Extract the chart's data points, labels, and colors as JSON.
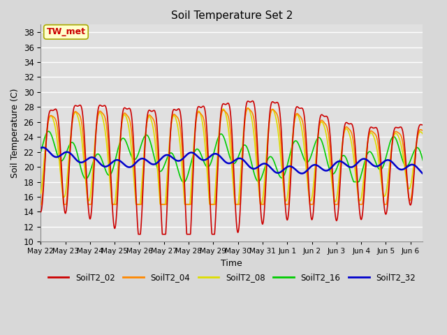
{
  "title": "Soil Temperature Set 2",
  "xlabel": "Time",
  "ylabel": "Soil Temperature (C)",
  "ylim": [
    10,
    39
  ],
  "yticks": [
    10,
    12,
    14,
    16,
    18,
    20,
    22,
    24,
    26,
    28,
    30,
    32,
    34,
    36,
    38
  ],
  "background_color": "#d8d8d8",
  "plot_bg_color": "#e0e0e0",
  "grid_color": "#ffffff",
  "annotation_text": "TW_met",
  "annotation_color": "#cc0000",
  "annotation_bg": "#ffffcc",
  "annotation_border": "#aaaa00",
  "series": {
    "SoilT2_02": {
      "color": "#cc0000",
      "linewidth": 1.2,
      "zorder": 5
    },
    "SoilT2_04": {
      "color": "#ff8800",
      "linewidth": 1.2,
      "zorder": 4
    },
    "SoilT2_08": {
      "color": "#dddd00",
      "linewidth": 1.2,
      "zorder": 3
    },
    "SoilT2_16": {
      "color": "#00cc00",
      "linewidth": 1.2,
      "zorder": 2
    },
    "SoilT2_32": {
      "color": "#0000cc",
      "linewidth": 1.8,
      "zorder": 6
    }
  },
  "legend_entries": [
    "SoilT2_02",
    "SoilT2_04",
    "SoilT2_08",
    "SoilT2_16",
    "SoilT2_32"
  ],
  "legend_colors": [
    "#cc0000",
    "#ff8800",
    "#dddd00",
    "#00cc00",
    "#0000cc"
  ],
  "xtick_labels": [
    "May 22",
    "May 23",
    "May 24",
    "May 25",
    "May 26",
    "May 27",
    "May 28",
    "May 29",
    "May 30",
    "May 31",
    "Jun 1",
    "Jun 2",
    "Jun 3",
    "Jun 4",
    "Jun 5",
    "Jun 6"
  ],
  "n_days": 15.5,
  "points_per_day": 144
}
